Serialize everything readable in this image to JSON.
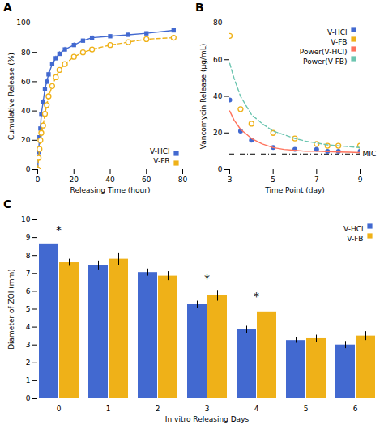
{
  "chart_data": [
    {
      "type": "line",
      "title": "A",
      "xlabel": "Releasing Time (hour)",
      "ylabel": "Cumulative Release (%)",
      "xlim": [
        0,
        80
      ],
      "ylim": [
        0,
        100
      ],
      "xticks": [
        0,
        20,
        40,
        60,
        80
      ],
      "yticks": [
        0,
        20,
        40,
        60,
        80,
        100
      ],
      "legend": "lower right",
      "series": [
        {
          "name": "V-HCl",
          "marker": "square",
          "line_style": "solid",
          "x": [
            0,
            0.5,
            1,
            1.5,
            2,
            3,
            4,
            5,
            6,
            8,
            10,
            12,
            15,
            20,
            25,
            30,
            40,
            50,
            60,
            75
          ],
          "values": [
            0,
            12,
            22,
            28,
            38,
            46,
            55,
            60,
            65,
            72,
            76,
            79,
            82,
            85,
            88,
            90,
            91,
            92,
            93,
            95
          ],
          "errors": [
            0,
            1.5,
            2,
            2,
            2,
            2,
            2,
            2,
            1.5,
            1.5,
            1.5,
            1.5,
            1.5,
            1.5,
            1.5,
            1.5,
            1,
            1,
            1,
            1
          ]
        },
        {
          "name": "V-FB",
          "marker": "open_circle",
          "line_style": "dashed",
          "x": [
            0,
            0.5,
            1,
            1.5,
            2,
            3,
            4,
            5,
            6,
            8,
            10,
            12,
            15,
            20,
            25,
            30,
            40,
            50,
            60,
            75
          ],
          "values": [
            0,
            8,
            14,
            20,
            25,
            30,
            38,
            44,
            50,
            57,
            63,
            68,
            72,
            77,
            80,
            82,
            85,
            87,
            89,
            90
          ],
          "errors": [
            0,
            1.5,
            2,
            2,
            2,
            2,
            2,
            2,
            2,
            2,
            1.5,
            1.5,
            1.5,
            1.5,
            1.5,
            1.5,
            1,
            1,
            1,
            1
          ]
        }
      ]
    },
    {
      "type": "line",
      "title": "B",
      "xlabel": "Time Point (day)",
      "ylabel": "Vancomycin Release (μg/mL)",
      "xlim": [
        3,
        9
      ],
      "ylim": [
        0,
        80
      ],
      "xticks": [
        3,
        5,
        7,
        9
      ],
      "yticks": [
        0,
        20,
        40,
        60,
        80
      ],
      "legend": "upper right",
      "reference_line": {
        "y": 8.5,
        "label": "MIC",
        "line_style": "dashdot"
      },
      "series": [
        {
          "name": "V-HCl",
          "type": "scatter",
          "marker": "circle",
          "x": [
            3,
            3.5,
            4,
            5,
            6,
            7,
            7.5,
            8,
            9
          ],
          "values": [
            38,
            21,
            16,
            12,
            11,
            11,
            10,
            10,
            10
          ]
        },
        {
          "name": "V-FB",
          "type": "scatter",
          "marker": "open_circle",
          "x": [
            3,
            3.5,
            4,
            5,
            6,
            7,
            7.5,
            8,
            9
          ],
          "values": [
            73,
            33,
            25,
            20,
            17,
            14,
            13,
            13,
            13
          ]
        },
        {
          "name": "Power(V-HCl)",
          "type": "line",
          "line_style": "solid",
          "x": [
            3,
            3.2,
            3.5,
            4,
            4.5,
            5,
            5.5,
            6,
            6.5,
            7,
            7.5,
            8,
            8.5,
            9
          ],
          "values": [
            32,
            27,
            22,
            17,
            14,
            12,
            11,
            10.5,
            10,
            10,
            9.8,
            9.6,
            9.5,
            9.3
          ]
        },
        {
          "name": "Power(V-FB)",
          "type": "line",
          "line_style": "dashed",
          "x": [
            3,
            3.2,
            3.5,
            4,
            4.5,
            5,
            5.5,
            6,
            6.5,
            7,
            7.5,
            8,
            8.5,
            9
          ],
          "values": [
            58,
            50,
            40,
            30,
            25,
            21,
            19,
            17,
            15.5,
            14.5,
            13.5,
            13,
            12.5,
            12
          ]
        }
      ]
    },
    {
      "type": "bar",
      "title": "C",
      "xlabel": "In vitro Releasing Days",
      "ylabel": "Diameter of ZOI (mm)",
      "categories": [
        "0",
        "1",
        "2",
        "3",
        "4",
        "5",
        "6"
      ],
      "ylim": [
        0,
        10
      ],
      "yticks": [
        0,
        1,
        2,
        3,
        4,
        5,
        6,
        7,
        8,
        9,
        10
      ],
      "legend": "upper right",
      "series": [
        {
          "name": "V-HCl",
          "values": [
            8.65,
            7.45,
            7.05,
            5.25,
            3.85,
            3.25,
            3.0
          ],
          "errors": [
            0.2,
            0.25,
            0.2,
            0.2,
            0.2,
            0.15,
            0.2
          ]
        },
        {
          "name": "V-FB",
          "values": [
            7.6,
            7.8,
            6.85,
            5.75,
            4.85,
            3.35,
            3.5
          ],
          "errors": [
            0.2,
            0.35,
            0.25,
            0.3,
            0.3,
            0.2,
            0.25
          ]
        }
      ],
      "annotations": [
        {
          "text": "*",
          "x": "0",
          "y": 9.2
        },
        {
          "text": "*",
          "x": "3",
          "y": 6.5
        },
        {
          "text": "*",
          "x": "4",
          "y": 5.5
        }
      ]
    }
  ]
}
